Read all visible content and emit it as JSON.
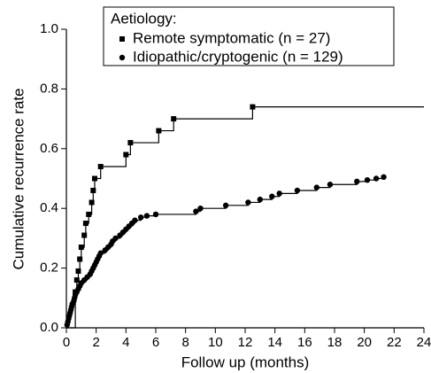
{
  "chart_data": {
    "type": "step",
    "x_label": "Follow up (months)",
    "y_label": "Cumulative recurrence rate",
    "legend_title": "Aetiology:",
    "legend": "upper left",
    "xlim": [
      0,
      24
    ],
    "xticks": [
      0,
      2,
      4,
      6,
      8,
      10,
      12,
      14,
      16,
      18,
      20,
      22,
      24
    ],
    "ylim": [
      0,
      1
    ],
    "yticks": [
      {
        "value": 0,
        "label": "0.0"
      },
      0.2,
      0.4,
      0.6,
      0.8,
      {
        "value": 1,
        "label": "1.0"
      }
    ],
    "series": [
      {
        "name": "Remote symptomatic (n = 27)",
        "color": "#000000",
        "marker": "square",
        "x": [
          0.6,
          0.7,
          0.8,
          0.9,
          1.0,
          1.2,
          1.3,
          1.5,
          1.7,
          1.8,
          1.9,
          2.3,
          4.0,
          4.3,
          6.2,
          7.2,
          12.5,
          24
        ],
        "values": [
          0.12,
          0.16,
          0.19,
          0.23,
          0.27,
          0.31,
          0.35,
          0.38,
          0.42,
          0.46,
          0.5,
          0.54,
          0.58,
          0.62,
          0.66,
          0.7,
          0.74,
          0.74
        ]
      },
      {
        "name": "Idiopathic/cryptogenic (n = 129)",
        "color": "#000000",
        "marker": "circle",
        "x": [
          0.05,
          0.1,
          0.15,
          0.2,
          0.25,
          0.3,
          0.35,
          0.4,
          0.5,
          0.55,
          0.6,
          0.7,
          0.8,
          0.9,
          1.0,
          1.2,
          1.4,
          1.6,
          1.7,
          1.8,
          1.9,
          2.0,
          2.1,
          2.2,
          2.3,
          2.6,
          2.8,
          3.0,
          3.1,
          3.3,
          3.6,
          3.8,
          4.0,
          4.2,
          4.4,
          4.6,
          5.0,
          5.4,
          6.0,
          8.7,
          9.0,
          10.7,
          12.2,
          13.0,
          13.8,
          14.3,
          15.5,
          16.8,
          17.7,
          19.5,
          20.2,
          20.8,
          21.3
        ],
        "values": [
          0.01,
          0.02,
          0.03,
          0.04,
          0.05,
          0.06,
          0.07,
          0.08,
          0.09,
          0.1,
          0.11,
          0.12,
          0.13,
          0.14,
          0.15,
          0.16,
          0.17,
          0.18,
          0.19,
          0.2,
          0.21,
          0.22,
          0.23,
          0.24,
          0.25,
          0.26,
          0.27,
          0.28,
          0.29,
          0.3,
          0.31,
          0.32,
          0.33,
          0.34,
          0.35,
          0.36,
          0.37,
          0.375,
          0.38,
          0.39,
          0.4,
          0.41,
          0.42,
          0.43,
          0.44,
          0.45,
          0.46,
          0.47,
          0.48,
          0.49,
          0.495,
          0.5,
          0.505
        ]
      }
    ]
  }
}
